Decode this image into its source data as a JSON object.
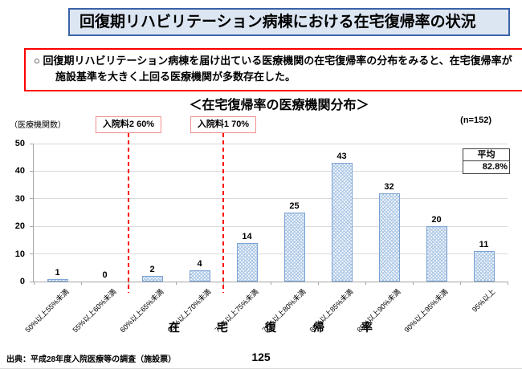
{
  "page": {
    "title": "回復期リハビリテーション病棟における在宅復帰率の状況",
    "page_number": "125",
    "source": "出典：平成28年度入院医療等の調査（施設票）"
  },
  "summary": {
    "line1": "○ 回復期リハビリテーション病棟を届け出ている医療機関の在宅復帰率の分布をみると、在宅復帰率が",
    "line2": "施設基準を大きく上回る医療機関が多数存在した。"
  },
  "chart_data": {
    "type": "bar",
    "title": "＜在宅復帰率の医療機関分布＞",
    "unit_label": "（医療機関数）",
    "n_label": "(n=152)",
    "categories": [
      "50%以上55%未満",
      "55%以上60%未満",
      "60%以上65%未満",
      "65%以上70%未満",
      "70%以上75%未満",
      "75%以上80%未満",
      "80%以上85%未満",
      "85%以上90%未満",
      "90%以上95%未満",
      "95%以上"
    ],
    "values": [
      1,
      0,
      2,
      4,
      14,
      25,
      43,
      32,
      20,
      11
    ],
    "ylim": [
      0,
      50
    ],
    "y_tick_step": 10,
    "grid": true,
    "legend": "none",
    "xlabel": "在　宅　復　帰　率",
    "average": {
      "label": "平均",
      "value": "82.8%"
    },
    "thresholds": [
      {
        "label": "入院料2 60%",
        "boundary_index": 2
      },
      {
        "label": "入院料1 70%",
        "boundary_index": 4
      }
    ],
    "colors": {
      "bar_fill": "#f4f8fd",
      "bar_hatch": "#a9c5e4",
      "bar_border": "#7ba3d4",
      "threshold_line": "#ff0000",
      "threshold_box_border": "#f08a8a",
      "summary_border": "#ff0000",
      "title_box_fill": "#dce6f2",
      "title_box_border": "#3a62a8",
      "gridline": "#d9d9d9",
      "axis": "#a6a6a6"
    }
  }
}
